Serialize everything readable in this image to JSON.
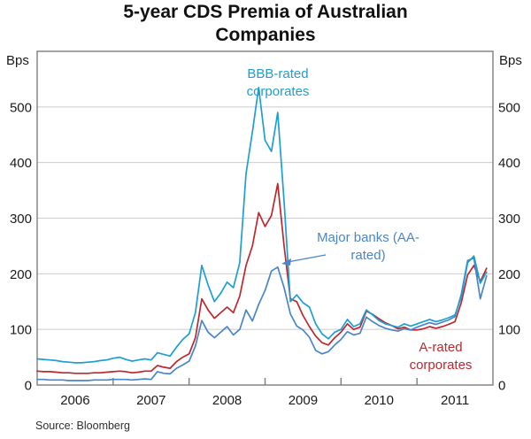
{
  "title": "5-year CDS Premia of Australian Companies",
  "y_axis_unit_left": "Bps",
  "y_axis_unit_right": "Bps",
  "source_note": "Source: Bloomberg",
  "annotations": {
    "bbb_label": "BBB-rated corporates",
    "banks_label": "Major banks (AA-rated)",
    "a_rated_label": "A-rated corporates"
  },
  "colors": {
    "bbb": "#1C9FD4",
    "a_rated": "#BE272E",
    "banks": "#4A85C8",
    "grid": "#CBCBCB",
    "axis": "#7D7D7D",
    "text": "#1A1A1A"
  },
  "chart_data": {
    "type": "line",
    "title": "5-year CDS Premia of Australian Companies",
    "xlabel": "",
    "ylabel": "Bps",
    "ylim": [
      0,
      600
    ],
    "yticks": [
      0,
      100,
      200,
      300,
      400,
      500
    ],
    "grid": "horizontal",
    "legend_position": "inline-annotations",
    "x_years": [
      2006,
      2007,
      2008,
      2009,
      2010,
      2011
    ],
    "frequency": "monthly",
    "x_range": "2006-01 to 2011-12",
    "series": [
      {
        "name": "A-rated corporates",
        "color_key": "a_rated",
        "values": [
          25,
          24,
          24,
          23,
          22,
          22,
          21,
          21,
          21,
          22,
          22,
          23,
          24,
          25,
          24,
          22,
          23,
          25,
          25,
          35,
          32,
          30,
          42,
          50,
          56,
          85,
          155,
          135,
          120,
          130,
          140,
          130,
          160,
          215,
          250,
          310,
          285,
          305,
          362,
          250,
          155,
          150,
          125,
          105,
          88,
          76,
          72,
          85,
          95,
          110,
          100,
          104,
          133,
          127,
          119,
          112,
          107,
          101,
          104,
          99,
          99,
          101,
          105,
          102,
          105,
          109,
          114,
          148,
          198,
          215,
          186,
          210
        ]
      },
      {
        "name": "Major banks (AA-rated)",
        "color_key": "banks",
        "values": [
          10,
          10,
          9,
          9,
          9,
          8,
          8,
          8,
          8,
          9,
          9,
          9,
          10,
          10,
          10,
          9,
          10,
          11,
          10,
          24,
          21,
          20,
          30,
          36,
          43,
          70,
          116,
          95,
          85,
          95,
          105,
          90,
          100,
          135,
          115,
          145,
          170,
          205,
          212,
          175,
          128,
          106,
          99,
          86,
          62,
          56,
          60,
          72,
          82,
          96,
          90,
          93,
          122,
          114,
          107,
          102,
          99,
          97,
          101,
          99,
          104,
          108,
          112,
          109,
          113,
          117,
          123,
          163,
          224,
          228,
          155,
          196
        ]
      },
      {
        "name": "BBB-rated corporates",
        "color_key": "bbb",
        "values": [
          47,
          46,
          45,
          44,
          42,
          41,
          40,
          40,
          41,
          42,
          44,
          45,
          48,
          50,
          46,
          43,
          45,
          47,
          45,
          58,
          55,
          52,
          68,
          82,
          92,
          130,
          215,
          180,
          150,
          165,
          185,
          175,
          220,
          380,
          455,
          535,
          440,
          420,
          490,
          330,
          150,
          162,
          148,
          140,
          110,
          92,
          83,
          95,
          100,
          118,
          105,
          110,
          135,
          126,
          116,
          110,
          107,
          104,
          110,
          106,
          110,
          114,
          118,
          114,
          117,
          121,
          126,
          158,
          220,
          232,
          183,
          203
        ]
      }
    ]
  }
}
